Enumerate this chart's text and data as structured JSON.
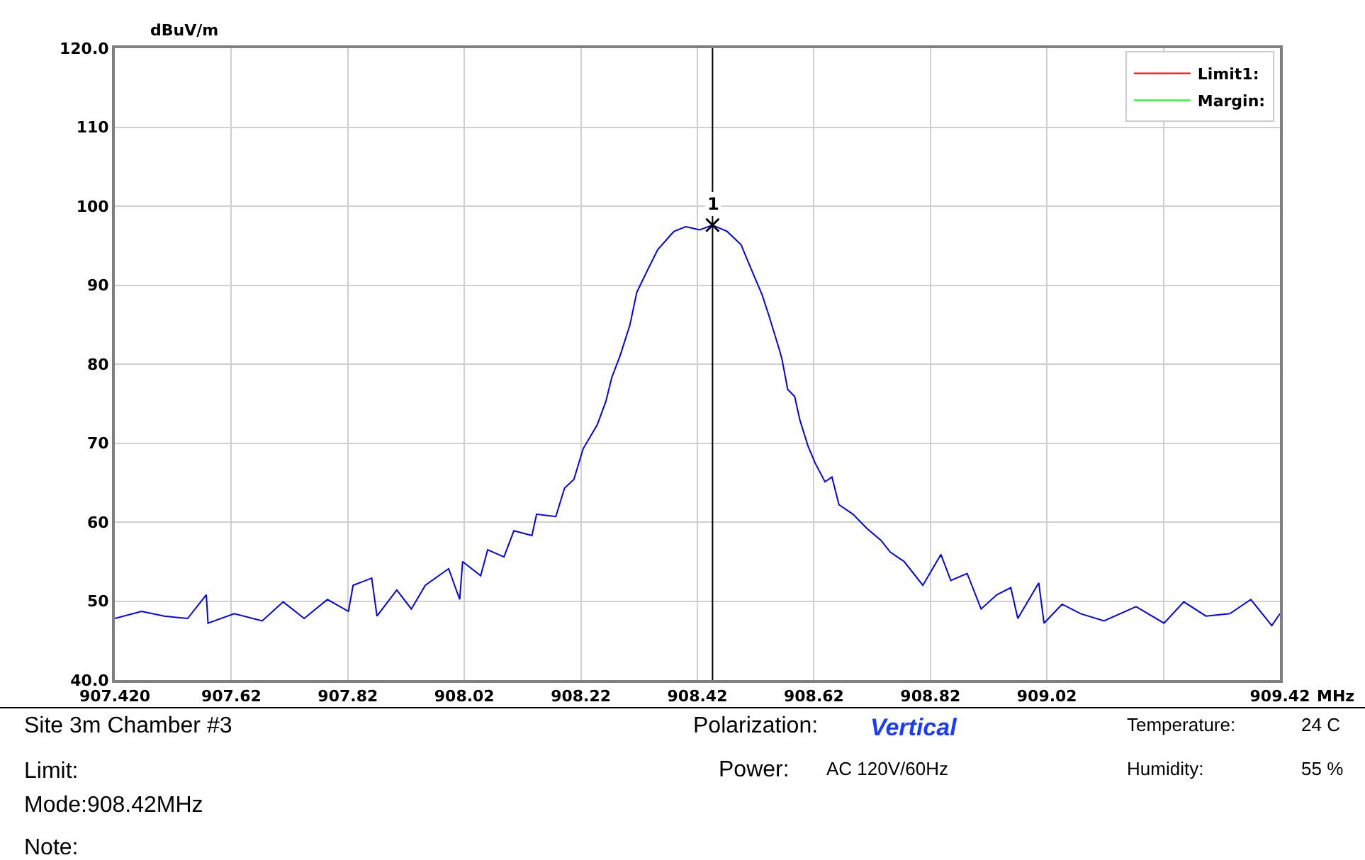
{
  "chart_data": {
    "type": "line",
    "xlabel": "MHz",
    "ylabel": "dBuV/m",
    "xlim": [
      907.42,
      909.42
    ],
    "ylim": [
      40,
      120
    ],
    "xticks": [
      {
        "value": 907.42,
        "label": "907.420"
      },
      907.62,
      907.82,
      908.02,
      908.22,
      908.42,
      908.62,
      908.82,
      909.02,
      {
        "value": 909.22,
        "label": null
      },
      909.42
    ],
    "yticks": [
      {
        "value": 40,
        "label": "40.0"
      },
      50,
      60,
      70,
      80,
      90,
      100,
      110,
      {
        "value": 120,
        "label": "120.0"
      }
    ],
    "grid": true,
    "legend": "top right",
    "line_style": "solid",
    "series": [
      {
        "color": "#0000ff",
        "x": [
          907.42,
          907.466,
          907.505,
          907.545,
          907.577,
          907.58,
          907.625,
          907.673,
          907.709,
          907.745,
          907.785,
          907.821,
          907.829,
          907.861,
          907.87,
          907.904,
          907.929,
          907.953,
          907.993,
          908.012,
          908.017,
          908.048,
          908.06,
          908.088,
          908.105,
          908.136,
          908.144,
          908.177,
          908.192,
          908.208,
          908.224,
          908.248,
          908.263,
          908.273,
          908.287,
          908.304,
          908.316,
          908.335,
          908.352,
          908.376,
          908.38,
          908.4,
          908.424,
          908.446,
          908.471,
          908.495,
          908.512,
          908.531,
          908.543,
          908.56,
          908.565,
          908.575,
          908.587,
          908.596,
          908.61,
          908.622,
          908.639,
          908.651,
          908.663,
          908.687,
          908.711,
          908.735,
          908.751,
          908.775,
          908.807,
          908.838,
          908.855,
          908.883,
          908.907,
          908.934,
          908.958,
          908.97,
          909.006,
          909.015,
          909.046,
          909.078,
          909.118,
          909.173,
          909.221,
          909.255,
          909.293,
          909.334,
          909.37,
          909.406,
          909.42
        ],
        "values": [
          47.8,
          48.7,
          48.1,
          47.8,
          50.8,
          47.2,
          48.4,
          47.5,
          49.9,
          47.8,
          50.2,
          48.7,
          52,
          52.9,
          48.1,
          51.4,
          49,
          52,
          54.1,
          50.2,
          55,
          53.2,
          56.5,
          55.6,
          58.9,
          58.3,
          61,
          60.7,
          64.3,
          65.4,
          69.3,
          72.3,
          75.3,
          78.3,
          81,
          84.9,
          89.1,
          92,
          94.5,
          96.5,
          96.8,
          97.4,
          97,
          97.6,
          96.8,
          95.1,
          92.1,
          88.8,
          86.1,
          82,
          80.7,
          76.8,
          75.9,
          72.9,
          69.6,
          67.5,
          65.1,
          65.7,
          62.2,
          61,
          59.2,
          57.7,
          56.2,
          55,
          52,
          55.9,
          52.6,
          53.5,
          49,
          50.8,
          51.7,
          47.8,
          52.3,
          47.2,
          49.6,
          48.4,
          47.5,
          49.3,
          47.2,
          49.9,
          48.1,
          48.4,
          50.2,
          46.9,
          48.4
        ]
      },
      {
        "type": "scatter",
        "marker": "cross",
        "color": "#000000",
        "x": [
          908.446
        ],
        "values": [
          97.6
        ]
      },
      {
        "name": "Limit1:",
        "color": "#ff0000",
        "x": [
          null
        ],
        "values": [
          null
        ]
      },
      {
        "name": "Margin:",
        "color": "#00ff00",
        "x": [
          null
        ],
        "values": [
          null
        ]
      }
    ],
    "ref_lines": [
      {
        "axis": "x",
        "value": 908.446,
        "color": "#000000"
      }
    ],
    "annotations": [
      {
        "text": "1",
        "x": 908.446,
        "y": 97.6
      },
      "Site  3m Chamber #3",
      "Limit:",
      "Mode:908.42MHz",
      "Note:",
      "Polarization:",
      "Vertical",
      "Power:",
      "AC 120V/60Hz",
      "Temperature:",
      "24 C",
      "Humidity:",
      "55 %"
    ]
  }
}
